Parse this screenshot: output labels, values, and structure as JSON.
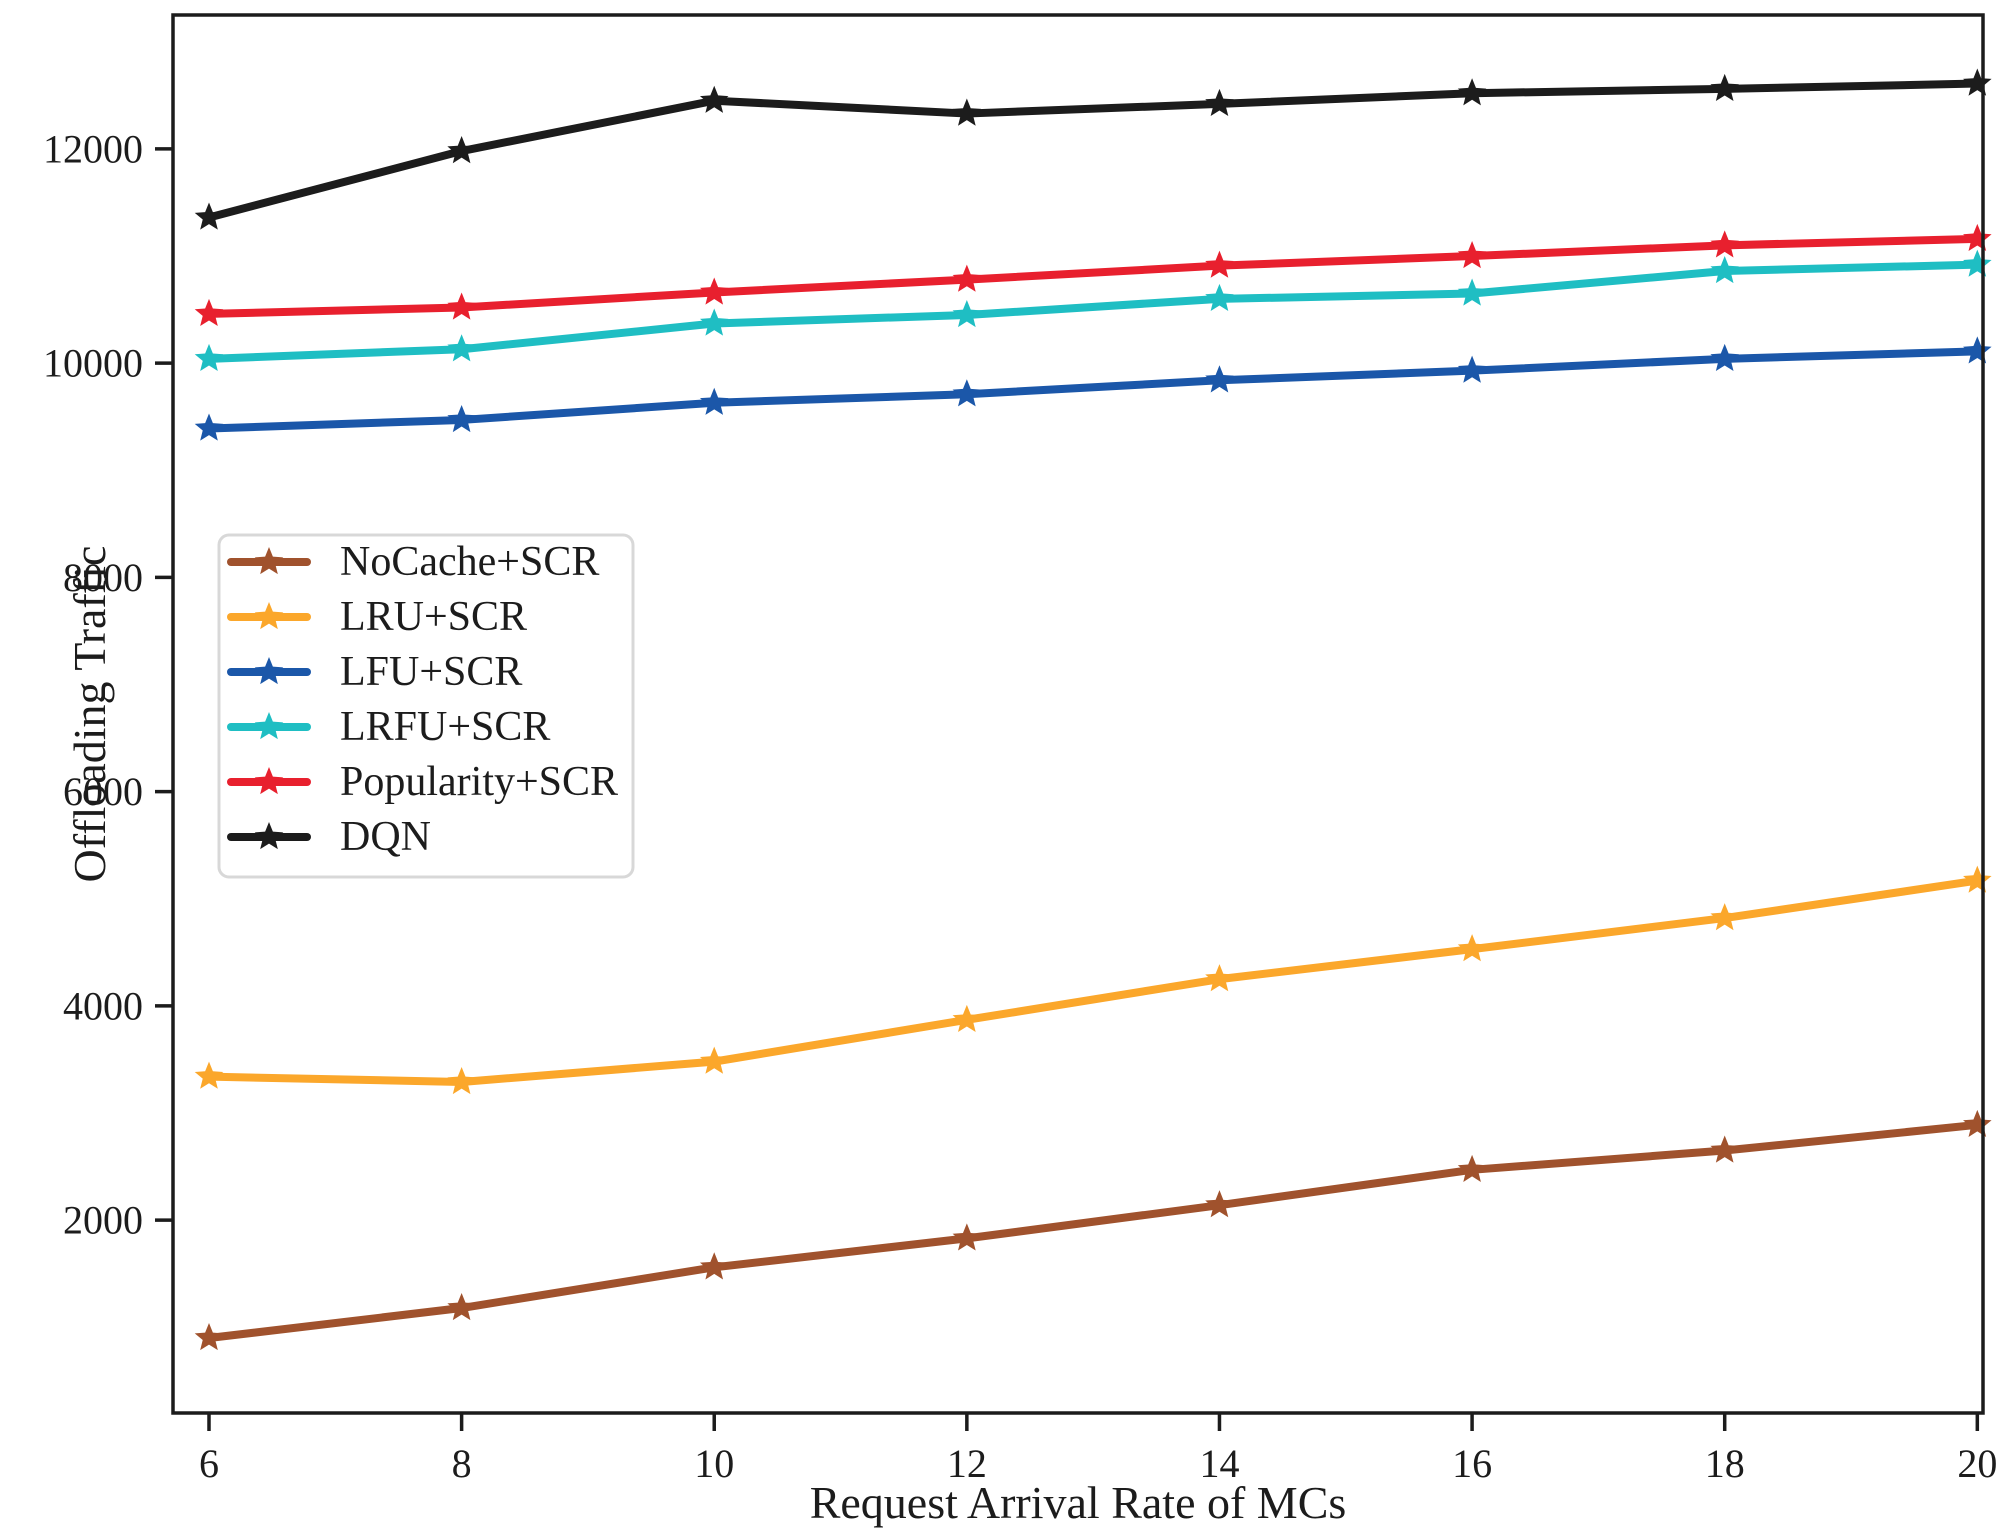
{
  "chart_data": {
    "type": "line",
    "title": "",
    "xlabel": "Request Arrival Rate of MCs",
    "ylabel": "Offloading Traffic",
    "x": [
      6,
      8,
      10,
      12,
      14,
      16,
      18,
      20
    ],
    "xticks": [
      6,
      8,
      10,
      12,
      14,
      16,
      18,
      20
    ],
    "yticks": [
      2000,
      4000,
      6000,
      8000,
      10000,
      12000
    ],
    "xlim": [
      5.715,
      20.045
    ],
    "ylim": [
      200,
      13250
    ],
    "grid": false,
    "marker": "star",
    "legend_position": "center-left",
    "axis_color": "#1c1c1c",
    "legend_border_color": "#d8d8d8",
    "series": [
      {
        "name": "NoCache+SCR",
        "color": "#A0522D",
        "values": [
          900,
          1180,
          1560,
          1830,
          2140,
          2470,
          2650,
          2890
        ]
      },
      {
        "name": "LRU+SCR",
        "color": "#FBA72B",
        "values": [
          3340,
          3290,
          3480,
          3870,
          4250,
          4530,
          4820,
          5170
        ]
      },
      {
        "name": "LFU+SCR",
        "color": "#1B57A9",
        "values": [
          9390,
          9470,
          9630,
          9710,
          9840,
          9930,
          10040,
          10110
        ]
      },
      {
        "name": "LRFU+SCR",
        "color": "#1FBEC3",
        "values": [
          10040,
          10130,
          10370,
          10450,
          10600,
          10650,
          10860,
          10920
        ]
      },
      {
        "name": "Popularity+SCR",
        "color": "#E8202E",
        "values": [
          10460,
          10520,
          10660,
          10780,
          10910,
          11000,
          11100,
          11160
        ]
      },
      {
        "name": "DQN",
        "color": "#1C1C1C",
        "values": [
          11360,
          11980,
          12450,
          12330,
          12420,
          12520,
          12560,
          12610
        ]
      }
    ]
  }
}
